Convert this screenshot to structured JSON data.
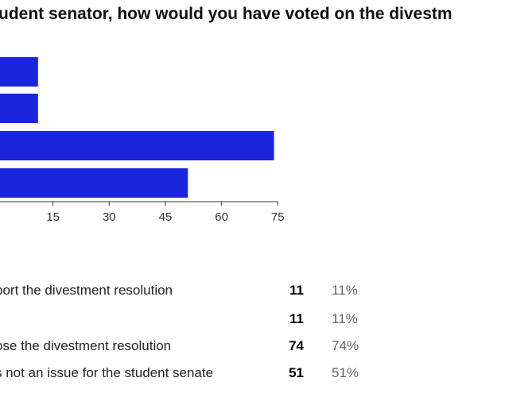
{
  "question": "udent senator, how would you have voted on the divestm",
  "colors": {
    "bar": "#1b25dc"
  },
  "chart_data": {
    "type": "bar",
    "orientation": "horizontal",
    "categories": [
      "port the divestment resolution",
      "",
      "ose the divestment resolution",
      "s not an issue for the student senate"
    ],
    "values": [
      11,
      11,
      74,
      51
    ],
    "xticks": [
      "15",
      "30",
      "45",
      "60",
      "75"
    ],
    "xlim": [
      0,
      75
    ],
    "grid": false
  },
  "results": [
    {
      "label": "port the divestment resolution",
      "count": "11",
      "percent": "11%"
    },
    {
      "label": "",
      "count": "11",
      "percent": "11%"
    },
    {
      "label": "ose the divestment resolution",
      "count": "74",
      "percent": "74%"
    },
    {
      "label": "s not an issue for the student senate",
      "count": "51",
      "percent": "51%"
    }
  ]
}
